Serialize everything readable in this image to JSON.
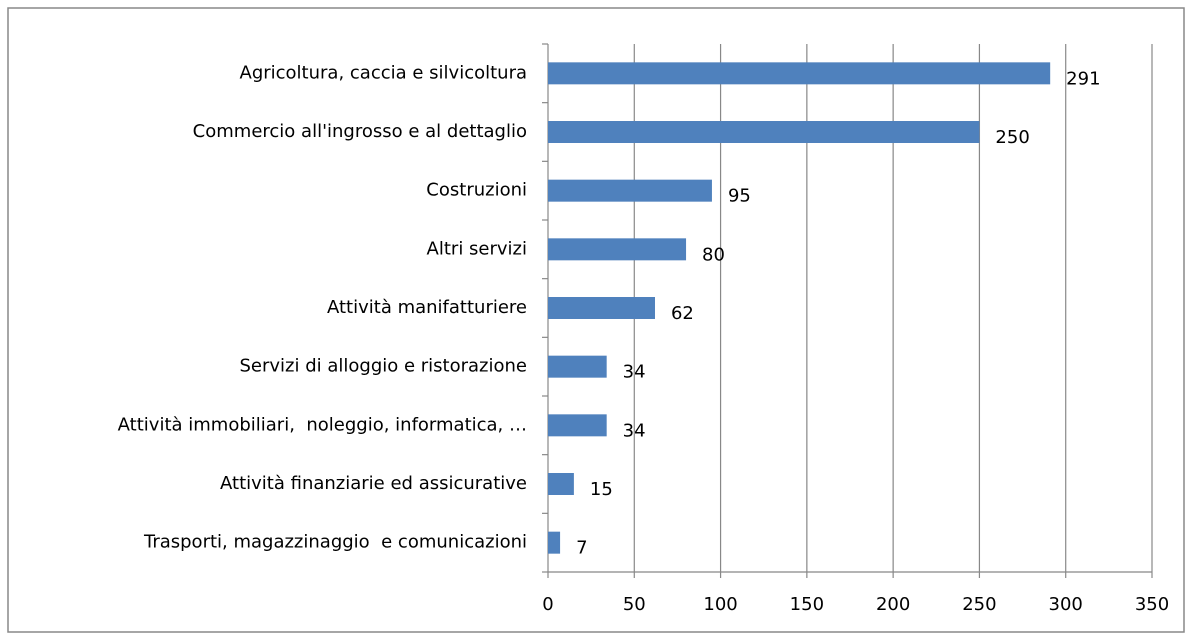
{
  "chart_data": {
    "type": "barh",
    "categories": [
      "Agricoltura, caccia e silvicoltura",
      "Commercio all'ingrosso e al dettaglio",
      "Costruzioni",
      "Altri servizi",
      "Attività manifatturiere",
      "Servizi di alloggio e ristorazione",
      "Attività immobiliari,  noleggio, informatica, …",
      "Attività finanziarie ed assicurative",
      "Trasporti, magazzinaggio  e comunicazioni"
    ],
    "values": [
      291,
      250,
      95,
      80,
      62,
      34,
      34,
      15,
      7
    ],
    "color": "#4f81bd",
    "xlim": [
      0,
      350
    ],
    "xticks": [
      0,
      50,
      100,
      150,
      200,
      250,
      300,
      350
    ],
    "grid": true
  }
}
